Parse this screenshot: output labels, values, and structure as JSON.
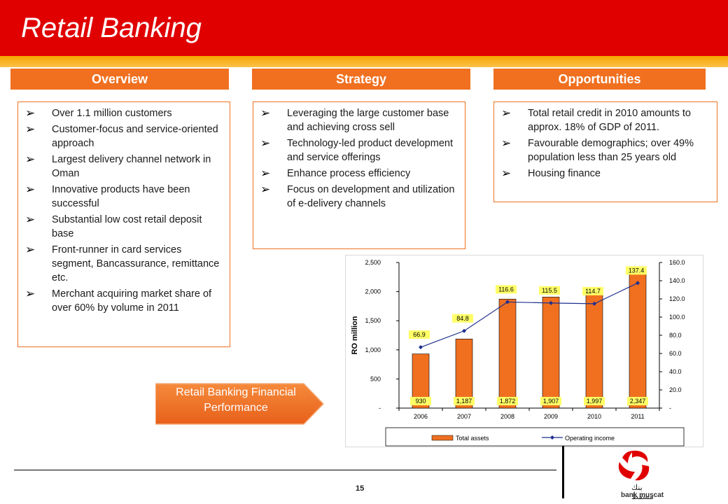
{
  "header": {
    "title": "Retail Banking"
  },
  "columns": {
    "overview": {
      "label": "Overview",
      "items": [
        "Over 1.1 million customers",
        "Customer-focus and service-oriented approach",
        "Largest delivery channel network in Oman",
        "Innovative products have been successful",
        "Substantial low cost retail deposit base",
        "Front-runner in card services segment, Bancassurance, remittance etc.",
        "Merchant acquiring market share of over 60% by volume in 2011"
      ]
    },
    "strategy": {
      "label": "Strategy",
      "items": [
        "Leveraging the large customer base and achieving cross sell",
        "Technology-led product development and service offerings",
        "Enhance process efficiency",
        "Focus on development and utilization of e-delivery channels"
      ]
    },
    "opportunities": {
      "label": "Opportunities",
      "items": [
        "Total retail credit in 2010 amounts to approx. 18% of GDP of 2011.",
        "Favourable demographics; over 49% population less than 25 years old",
        "Housing finance"
      ]
    }
  },
  "callout": {
    "text": "Retail Banking Financial Performance"
  },
  "footer": {
    "page_number": "15",
    "brand_arabic": "بنك مسقط",
    "brand_name": "bank muscat"
  },
  "icons": {
    "bullet": "arrowhead-bullet-icon",
    "logo": "bank-muscat-logo-icon"
  },
  "colors": {
    "title_bar": "#e00000",
    "accent_orange": "#f07020",
    "bar_fill": "#f07020",
    "line_color": "#1f2f8f",
    "label_bg": "#ffff66"
  },
  "chart_data": {
    "type": "bar",
    "categories": [
      "2006",
      "2007",
      "2008",
      "2009",
      "2010",
      "2011"
    ],
    "ylabel": "RO million",
    "ylim": [
      0,
      2500
    ],
    "y_ticks": [
      "-",
      "500",
      "1,000",
      "1,500",
      "2,000",
      "2,500"
    ],
    "y2lim": [
      0,
      160
    ],
    "y2_ticks": [
      "-",
      "20.0",
      "40.0",
      "60.0",
      "80.0",
      "100.0",
      "120.0",
      "140.0",
      "160.0"
    ],
    "series": [
      {
        "name": "Total assets",
        "type": "bar",
        "axis": "left",
        "values": [
          930,
          1187,
          1872,
          1907,
          1997,
          2347
        ],
        "labels": [
          "930",
          "1,187",
          "1,872",
          "1,907",
          "1,997",
          "2,347"
        ]
      },
      {
        "name": "Operating income",
        "type": "line",
        "axis": "right",
        "values": [
          66.9,
          84.8,
          116.6,
          115.5,
          114.7,
          137.4
        ],
        "labels": [
          "66.9",
          "84.8",
          "116.6",
          "115.5",
          "114.7",
          "137.4"
        ]
      }
    ],
    "legend": "bottom"
  }
}
